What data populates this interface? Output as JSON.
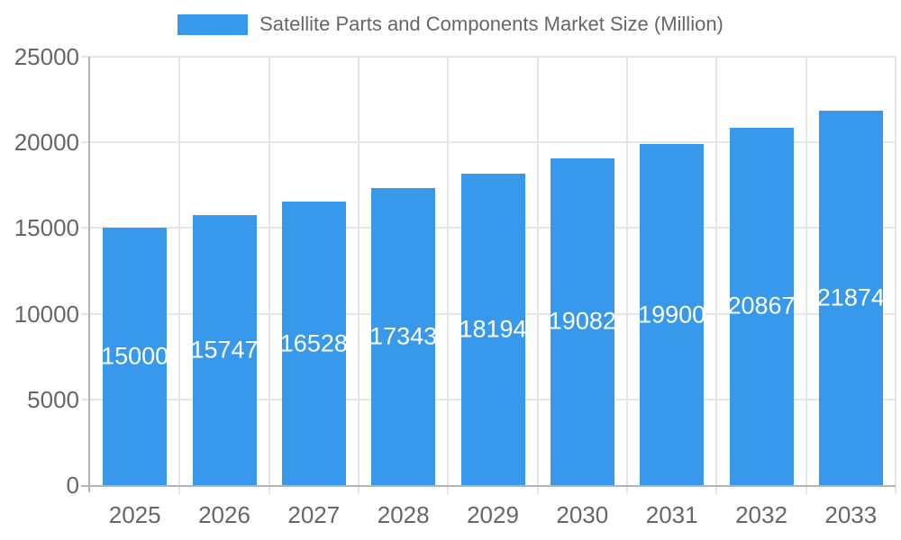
{
  "legend": {
    "swatch_color": "#3898EC",
    "label": "Satellite Parts and Components Market Size (Million)"
  },
  "chart_data": {
    "type": "bar",
    "title": "Satellite Parts and Components Market Size (Million)",
    "categories": [
      "2025",
      "2026",
      "2027",
      "2028",
      "2029",
      "2030",
      "2031",
      "2032",
      "2033"
    ],
    "values": [
      15000,
      15747,
      16528,
      17343,
      18194,
      19082,
      19900,
      20867,
      21874
    ],
    "series": [
      {
        "name": "Satellite Parts and Components Market Size (Million)",
        "values": [
          15000,
          15747,
          16528,
          17343,
          18194,
          19082,
          19900,
          20867,
          21874
        ]
      }
    ],
    "xlabel": "",
    "ylabel": "",
    "ylim": [
      0,
      25000
    ],
    "yticks": [
      0,
      5000,
      10000,
      15000,
      20000,
      25000
    ],
    "grid": true,
    "legend_position": "top",
    "bar_color": "#3898EC",
    "value_label_color": "#FFFFFF",
    "grid_color": "#E6E6E6",
    "axis_color": "#B3B3B3",
    "tick_label_color": "#666666",
    "background_color": "#FFFFFF"
  }
}
